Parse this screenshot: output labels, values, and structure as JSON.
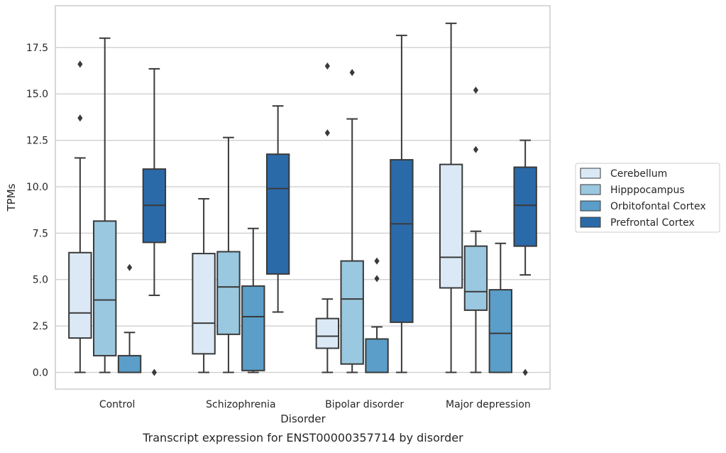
{
  "chart_data": {
    "type": "boxplot",
    "caption": "Transcript expression for ENST00000357714 by disorder",
    "xlabel": "Disorder",
    "ylabel": "TPMs",
    "ylim": [
      -0.9,
      19.75
    ],
    "yticks": [
      0.0,
      2.5,
      5.0,
      7.5,
      10.0,
      12.5,
      15.0,
      17.5
    ],
    "ytick_labels": [
      "0.0",
      "2.5",
      "5.0",
      "7.5",
      "10.0",
      "12.5",
      "15.0",
      "17.5"
    ],
    "grid": "horizontal",
    "legend_position": "right",
    "categories": [
      "Control",
      "Schizophrenia",
      "Bipolar disorder",
      "Major depression"
    ],
    "series": [
      {
        "name": "Cerebellum",
        "color": "#dbe9f6",
        "boxes": [
          {
            "whisker_low": 0.0,
            "q1": 1.85,
            "median": 3.2,
            "q3": 6.45,
            "whisker_high": 11.55,
            "outliers": [
              13.7,
              16.6
            ]
          },
          {
            "whisker_low": 0.0,
            "q1": 1.0,
            "median": 2.65,
            "q3": 6.4,
            "whisker_high": 9.35,
            "outliers": []
          },
          {
            "whisker_low": 0.0,
            "q1": 1.3,
            "median": 1.95,
            "q3": 2.9,
            "whisker_high": 3.95,
            "outliers": [
              12.9,
              16.5
            ]
          },
          {
            "whisker_low": 0.0,
            "q1": 4.55,
            "median": 6.2,
            "q3": 11.2,
            "whisker_high": 18.8,
            "outliers": []
          }
        ]
      },
      {
        "name": "Hipppocampus",
        "color": "#9ac8e0",
        "boxes": [
          {
            "whisker_low": 0.0,
            "q1": 0.9,
            "median": 3.9,
            "q3": 8.15,
            "whisker_high": 18.0,
            "outliers": []
          },
          {
            "whisker_low": 0.0,
            "q1": 2.05,
            "median": 4.6,
            "q3": 6.5,
            "whisker_high": 12.65,
            "outliers": []
          },
          {
            "whisker_low": 0.0,
            "q1": 0.45,
            "median": 3.95,
            "q3": 6.0,
            "whisker_high": 13.65,
            "outliers": [
              16.15
            ]
          },
          {
            "whisker_low": 0.0,
            "q1": 3.35,
            "median": 4.35,
            "q3": 6.8,
            "whisker_high": 7.6,
            "outliers": [
              12.0,
              15.2
            ]
          }
        ]
      },
      {
        "name": "Orbitofontal Cortex",
        "color": "#5a9ec9",
        "boxes": [
          {
            "whisker_low": 0.0,
            "q1": 0.0,
            "median": 0.0,
            "q3": 0.9,
            "whisker_high": 2.15,
            "outliers": [
              5.65
            ]
          },
          {
            "whisker_low": 0.0,
            "q1": 0.1,
            "median": 3.0,
            "q3": 4.65,
            "whisker_high": 7.75,
            "outliers": []
          },
          {
            "whisker_low": 0.0,
            "q1": 0.0,
            "median": 0.0,
            "q3": 1.8,
            "whisker_high": 2.45,
            "outliers": [
              5.05,
              6.0
            ]
          },
          {
            "whisker_low": 0.0,
            "q1": 0.0,
            "median": 2.1,
            "q3": 4.45,
            "whisker_high": 6.95,
            "outliers": []
          }
        ]
      },
      {
        "name": "Prefrontal Cortex",
        "color": "#2b6aa9",
        "boxes": [
          {
            "whisker_low": 4.15,
            "q1": 7.0,
            "median": 9.0,
            "q3": 10.95,
            "whisker_high": 16.35,
            "outliers": [
              0.0
            ]
          },
          {
            "whisker_low": 3.25,
            "q1": 5.3,
            "median": 9.9,
            "q3": 11.75,
            "whisker_high": 14.35,
            "outliers": []
          },
          {
            "whisker_low": 0.0,
            "q1": 2.7,
            "median": 8.0,
            "q3": 11.45,
            "whisker_high": 18.15,
            "outliers": []
          },
          {
            "whisker_low": 5.25,
            "q1": 6.8,
            "median": 9.0,
            "q3": 11.05,
            "whisker_high": 12.5,
            "outliers": [
              0.0
            ]
          }
        ]
      }
    ]
  }
}
